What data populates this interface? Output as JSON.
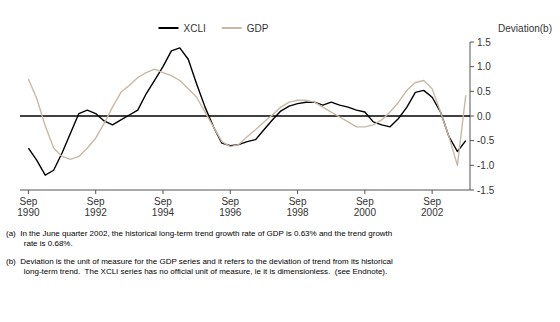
{
  "chart_data": {
    "type": "line",
    "categories": [
      "Sep\n1990",
      null,
      null,
      null,
      null,
      null,
      null,
      null,
      "Sep\n1992",
      null,
      null,
      null,
      null,
      null,
      null,
      null,
      "Sep\n1994",
      null,
      null,
      null,
      null,
      null,
      null,
      null,
      "Sep\n1996",
      null,
      null,
      null,
      null,
      null,
      null,
      null,
      "Sep\n1998",
      null,
      null,
      null,
      null,
      null,
      null,
      null,
      "Sep\n2000",
      null,
      null,
      null,
      null,
      null,
      null,
      null,
      "Sep\n2002",
      null,
      null,
      null,
      null
    ],
    "series": [
      {
        "name": "XCLI",
        "color": "#000000",
        "values": [
          -0.65,
          -0.9,
          -1.2,
          -1.1,
          -0.75,
          -0.35,
          0.05,
          0.12,
          0.05,
          -0.1,
          -0.18,
          -0.08,
          0.02,
          0.12,
          0.45,
          0.72,
          1.0,
          1.32,
          1.38,
          1.15,
          0.65,
          0.18,
          -0.22,
          -0.55,
          -0.6,
          -0.58,
          -0.52,
          -0.48,
          -0.28,
          -0.08,
          0.1,
          0.2,
          0.25,
          0.28,
          0.28,
          0.22,
          0.28,
          0.22,
          0.18,
          0.12,
          0.08,
          -0.12,
          -0.18,
          -0.22,
          -0.05,
          0.18,
          0.48,
          0.52,
          0.38,
          0.08,
          -0.42,
          -0.72,
          -0.5
        ]
      },
      {
        "name": "GDP",
        "color": "#c8b8a8",
        "values": [
          0.75,
          0.35,
          -0.2,
          -0.65,
          -0.82,
          -0.88,
          -0.82,
          -0.65,
          -0.45,
          -0.15,
          0.18,
          0.48,
          0.62,
          0.78,
          0.88,
          0.95,
          0.88,
          0.82,
          0.72,
          0.55,
          0.38,
          0.08,
          -0.22,
          -0.52,
          -0.62,
          -0.58,
          -0.42,
          -0.28,
          -0.12,
          0.02,
          0.18,
          0.28,
          0.32,
          0.32,
          0.28,
          0.18,
          0.08,
          -0.02,
          -0.12,
          -0.22,
          -0.22,
          -0.18,
          -0.08,
          0.08,
          0.28,
          0.52,
          0.68,
          0.72,
          0.55,
          0.08,
          -0.42,
          -1.0,
          0.42
        ]
      }
    ],
    "ylabel": "Deviation(b)",
    "ylim": [
      -1.5,
      1.5
    ],
    "yticks": [
      -1.5,
      {
        "value": -1.0,
        "label": "-1.0"
      },
      -0.5,
      {
        "value": 0.0,
        "label": "0.0"
      },
      0.5,
      {
        "value": 1.0,
        "label": "1.0"
      },
      1.5
    ],
    "reference_lines": [
      {
        "value": 0,
        "color": "#000000"
      }
    ],
    "grid": false,
    "legend": "top",
    "notes": [
      "(a)  In the June quarter 2002, the historical long-term trend growth rate of GDP is 0.63% and the trend growth\n        rate is 0.68%.",
      "(b)  Deviation is the unit of measure for the GDP series and it refers to the deviation of trend from its historical\n        long-term trend.  The XCLI series has no official unit of measure, ie it is dimensionless.  (see Endnote)."
    ]
  }
}
